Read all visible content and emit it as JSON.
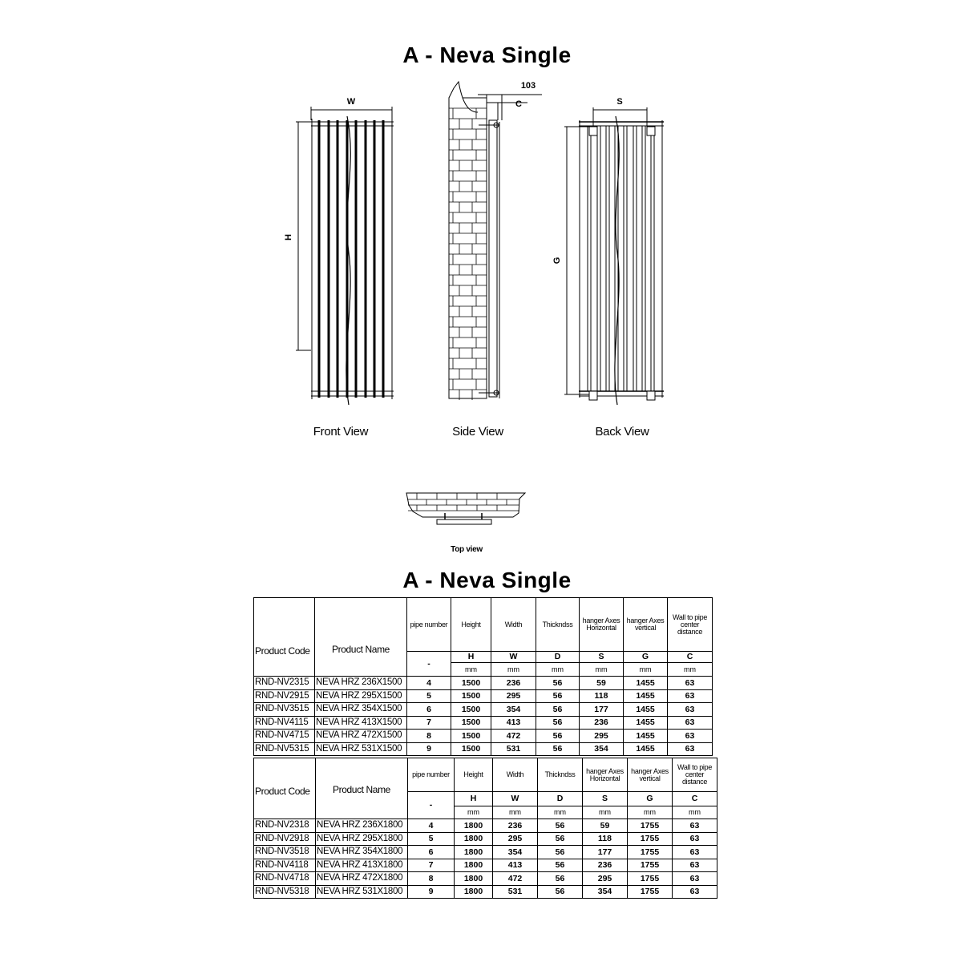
{
  "title_top": "A - Neva Single",
  "title_table": "A - Neva Single",
  "drawing": {
    "dim_w": "W",
    "dim_h": "H",
    "dim_103": "103",
    "dim_c": "C",
    "dim_s": "S",
    "dim_g": "G",
    "front_view": "Front View",
    "side_view": "Side View",
    "back_view": "Back View",
    "top_view": "Top view"
  },
  "columns": {
    "product_code": "Product Code",
    "product_name": "Product Name",
    "pipe_number": "pipe number",
    "height": "Height",
    "width": "Width",
    "thickness": "Thickndss",
    "hanger_h": "hanger Axes Horizontal",
    "hanger_v": "hanger Axes vertical",
    "wall": "Wall to pipe center distance",
    "symbols": [
      "-",
      "H",
      "W",
      "D",
      "S",
      "G",
      "C"
    ],
    "units": [
      "mm",
      "mm",
      "mm",
      "mm",
      "mm",
      "mm"
    ]
  },
  "tables": [
    {
      "rows": [
        [
          "RND-NV2315",
          "NEVA HRZ 236X1500",
          "4",
          "1500",
          "236",
          "56",
          "59",
          "1455",
          "63"
        ],
        [
          "RND-NV2915",
          "NEVA HRZ 295X1500",
          "5",
          "1500",
          "295",
          "56",
          "118",
          "1455",
          "63"
        ],
        [
          "RND-NV3515",
          "NEVA HRZ 354X1500",
          "6",
          "1500",
          "354",
          "56",
          "177",
          "1455",
          "63"
        ],
        [
          "RND-NV4115",
          "NEVA HRZ 413X1500",
          "7",
          "1500",
          "413",
          "56",
          "236",
          "1455",
          "63"
        ],
        [
          "RND-NV4715",
          "NEVA HRZ 472X1500",
          "8",
          "1500",
          "472",
          "56",
          "295",
          "1455",
          "63"
        ],
        [
          "RND-NV5315",
          "NEVA HRZ 531X1500",
          "9",
          "1500",
          "531",
          "56",
          "354",
          "1455",
          "63"
        ]
      ]
    },
    {
      "rows": [
        [
          "RND-NV2318",
          "NEVA HRZ 236X1800",
          "4",
          "1800",
          "236",
          "56",
          "59",
          "1755",
          "63"
        ],
        [
          "RND-NV2918",
          "NEVA HRZ 295X1800",
          "5",
          "1800",
          "295",
          "56",
          "118",
          "1755",
          "63"
        ],
        [
          "RND-NV3518",
          "NEVA HRZ 354X1800",
          "6",
          "1800",
          "354",
          "56",
          "177",
          "1755",
          "63"
        ],
        [
          "RND-NV4118",
          "NEVA HRZ 413X1800",
          "7",
          "1800",
          "413",
          "56",
          "236",
          "1755",
          "63"
        ],
        [
          "RND-NV4718",
          "NEVA HRZ 472X1800",
          "8",
          "1800",
          "472",
          "56",
          "295",
          "1755",
          "63"
        ],
        [
          "RND-NV5318",
          "NEVA HRZ 531X1800",
          "9",
          "1800",
          "531",
          "56",
          "354",
          "1755",
          "63"
        ]
      ]
    }
  ]
}
